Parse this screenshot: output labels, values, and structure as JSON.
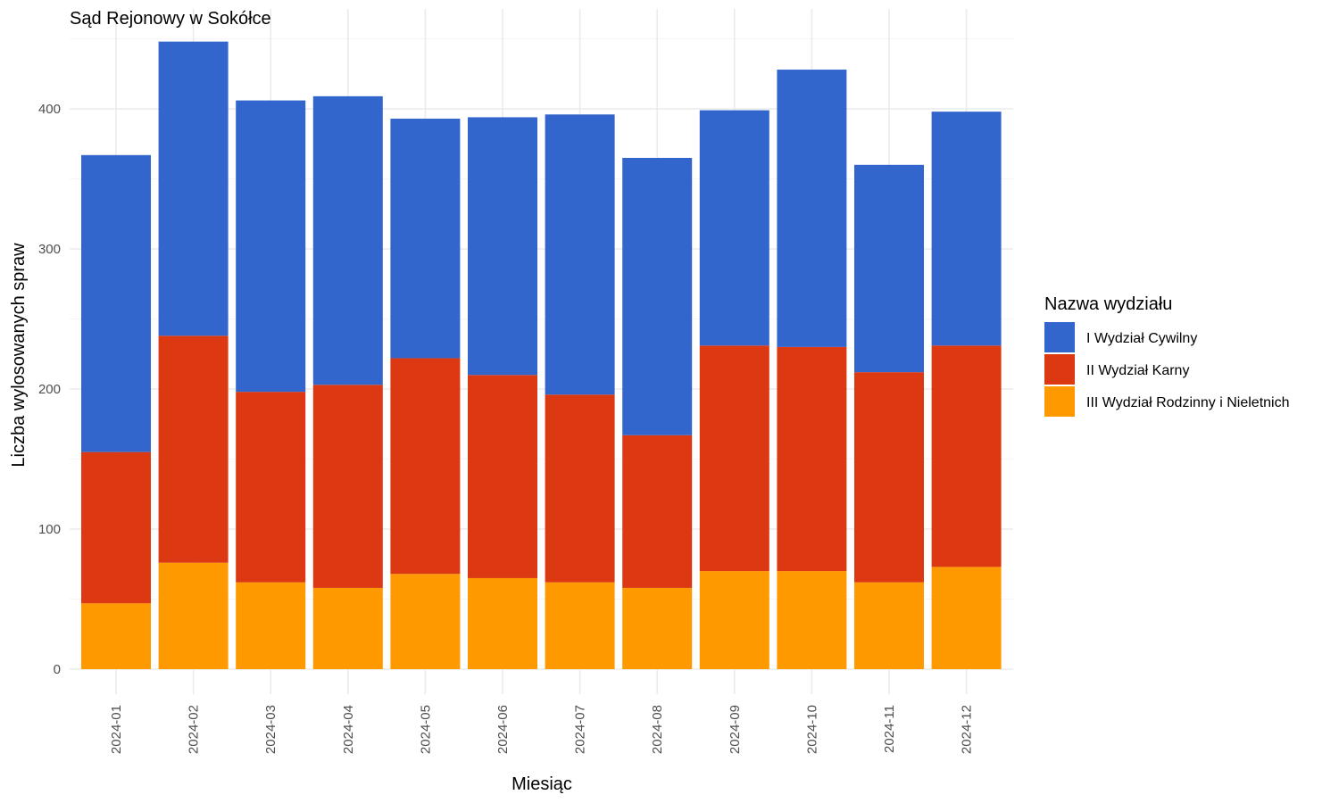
{
  "chart_data": {
    "type": "bar",
    "stacked": true,
    "title": "Sąd Rejonowy w Sokółce",
    "xlabel": "Miesiąc",
    "ylabel": "Liczba wylosowanych spraw",
    "ylim": [
      0,
      450
    ],
    "y_ticks": [
      0,
      100,
      200,
      300,
      400
    ],
    "grid": true,
    "legend_position": "right",
    "legend_title": "Nazwa wydziału",
    "categories": [
      "2024-01",
      "2024-02",
      "2024-03",
      "2024-04",
      "2024-05",
      "2024-06",
      "2024-07",
      "2024-08",
      "2024-09",
      "2024-10",
      "2024-11",
      "2024-12"
    ],
    "series": [
      {
        "name": "III Wydział Rodzinny i Nieletnich",
        "color": "#FF9900",
        "values": [
          47,
          76,
          62,
          58,
          68,
          65,
          62,
          58,
          70,
          70,
          62,
          73
        ]
      },
      {
        "name": "II Wydział Karny",
        "color": "#DC3912",
        "values": [
          108,
          162,
          136,
          145,
          154,
          145,
          134,
          109,
          161,
          160,
          150,
          158
        ]
      },
      {
        "name": "I Wydział Cywilny",
        "color": "#3366CC",
        "values": [
          212,
          210,
          208,
          206,
          171,
          184,
          200,
          198,
          168,
          198,
          148,
          167
        ]
      }
    ],
    "legend_order": [
      "I Wydział Cywilny",
      "II Wydział Karny",
      "III Wydział Rodzinny i Nieletnich"
    ]
  }
}
